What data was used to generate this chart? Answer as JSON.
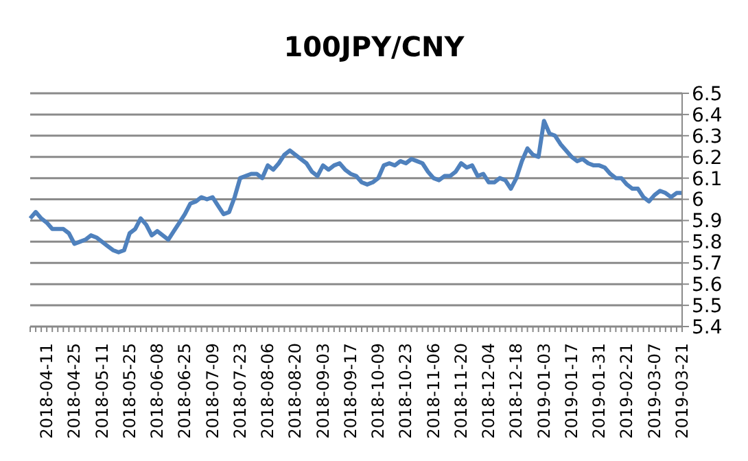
{
  "chart_data": {
    "type": "line",
    "title": "100JPY/CNY",
    "categories": [
      null,
      null,
      null,
      "2018-04-11",
      null,
      null,
      null,
      null,
      "2018-04-25",
      null,
      null,
      null,
      null,
      "2018-05-11",
      null,
      null,
      null,
      null,
      "2018-05-25",
      null,
      null,
      null,
      null,
      "2018-06-08",
      null,
      null,
      null,
      null,
      "2018-06-25",
      null,
      null,
      null,
      null,
      "2018-07-09",
      null,
      null,
      null,
      null,
      "2018-07-23",
      null,
      null,
      null,
      null,
      "2018-08-06",
      null,
      null,
      null,
      null,
      "2018-08-20",
      null,
      null,
      null,
      null,
      "2018-09-03",
      null,
      null,
      null,
      null,
      "2018-09-17",
      null,
      null,
      null,
      null,
      "2018-10-09",
      null,
      null,
      null,
      null,
      "2018-10-23",
      null,
      null,
      null,
      null,
      "2018-11-06",
      null,
      null,
      null,
      null,
      "2018-11-20",
      null,
      null,
      null,
      null,
      "2018-12-04",
      null,
      null,
      null,
      null,
      "2018-12-18",
      null,
      null,
      null,
      null,
      "2019-01-03",
      null,
      null,
      null,
      null,
      "2019-01-17",
      null,
      null,
      null,
      null,
      "2019-01-31",
      null,
      null,
      null,
      null,
      "2019-02-21",
      null,
      null,
      null,
      null,
      "2019-03-07",
      null,
      null,
      null,
      null,
      "2019-03-21"
    ],
    "series": [
      {
        "color": "#4f81bd",
        "values": [
          5.91,
          5.94,
          5.91,
          5.89,
          5.86,
          5.86,
          5.86,
          5.84,
          5.79,
          5.8,
          5.81,
          5.83,
          5.82,
          5.8,
          5.78,
          5.76,
          5.75,
          5.76,
          5.84,
          5.86,
          5.91,
          5.88,
          5.83,
          5.85,
          5.83,
          5.81,
          5.85,
          5.89,
          5.93,
          5.98,
          5.99,
          6.01,
          6.0,
          6.01,
          5.97,
          5.93,
          5.94,
          6.01,
          6.1,
          6.11,
          6.12,
          6.12,
          6.1,
          6.16,
          6.14,
          6.17,
          6.21,
          6.23,
          6.21,
          6.19,
          6.17,
          6.13,
          6.11,
          6.16,
          6.14,
          6.16,
          6.17,
          6.14,
          6.12,
          6.11,
          6.08,
          6.07,
          6.08,
          6.1,
          6.16,
          6.17,
          6.16,
          6.18,
          6.17,
          6.19,
          6.18,
          6.17,
          6.13,
          6.1,
          6.09,
          6.11,
          6.11,
          6.13,
          6.17,
          6.15,
          6.16,
          6.11,
          6.12,
          6.08,
          6.08,
          6.1,
          6.09,
          6.05,
          6.1,
          6.18,
          6.24,
          6.21,
          6.2,
          6.37,
          6.31,
          6.3,
          6.26,
          6.23,
          6.2,
          6.18,
          6.19,
          6.17,
          6.16,
          6.16,
          6.15,
          6.12,
          6.1,
          6.1,
          6.07,
          6.05,
          6.05,
          6.01,
          5.99,
          6.02,
          6.04,
          6.03,
          6.01,
          6.03,
          6.03
        ]
      }
    ],
    "ylim": [
      5.4,
      6.5
    ],
    "yticks": [
      5.4,
      5.5,
      5.6,
      5.7,
      5.8,
      5.9,
      6,
      6.1,
      6.2,
      6.3,
      6.4,
      6.5
    ],
    "grid": "y",
    "legend": false,
    "marker": "none",
    "line_style": "solid"
  }
}
